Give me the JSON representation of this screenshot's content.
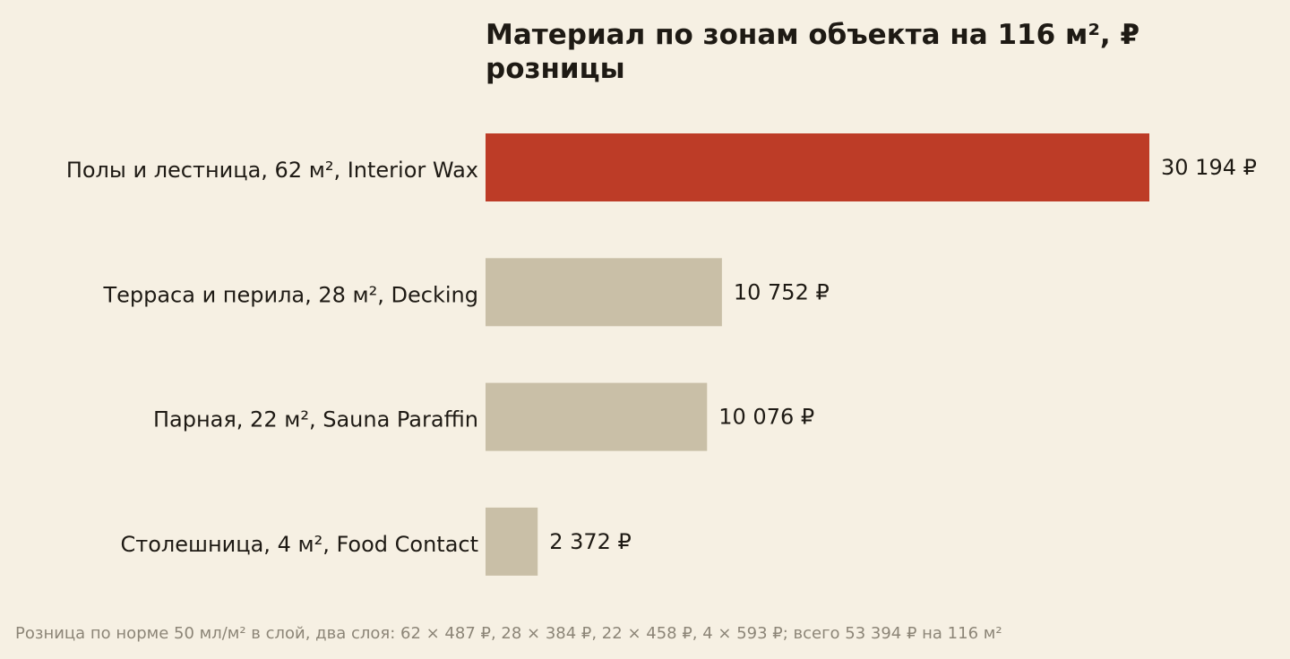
{
  "chart_data": {
    "type": "bar",
    "orientation": "horizontal",
    "title": "Материал по зонам объекта на 116 м², ₽ розницы",
    "categories": [
      "Полы и лестница, 62 м², Interior Wax",
      "Терраса и перила, 28 м², Decking",
      "Парная, 22 м², Sauna Paraffin",
      "Столешница, 4 м², Food Contact"
    ],
    "values": [
      30194,
      10752,
      10076,
      2372
    ],
    "value_labels": [
      "30 194 ₽",
      "10 752 ₽",
      "10 076 ₽",
      "2 372 ₽"
    ],
    "xlim": [
      0,
      30194
    ],
    "highlight_index": 0,
    "grid": false,
    "legend": "none"
  },
  "colors": {
    "highlight": "#bd3c27",
    "bar": "#c9bfa7",
    "background": "#f6f0e3",
    "text": "#1e1a14",
    "footnote": "#8c8577"
  },
  "footnote": "Розница по норме 50 мл/м² в слой, два слоя: 62 × 487 ₽, 28 × 384 ₽, 22 × 458 ₽, 4 × 593 ₽; всего 53 394 ₽ на 116 м²"
}
